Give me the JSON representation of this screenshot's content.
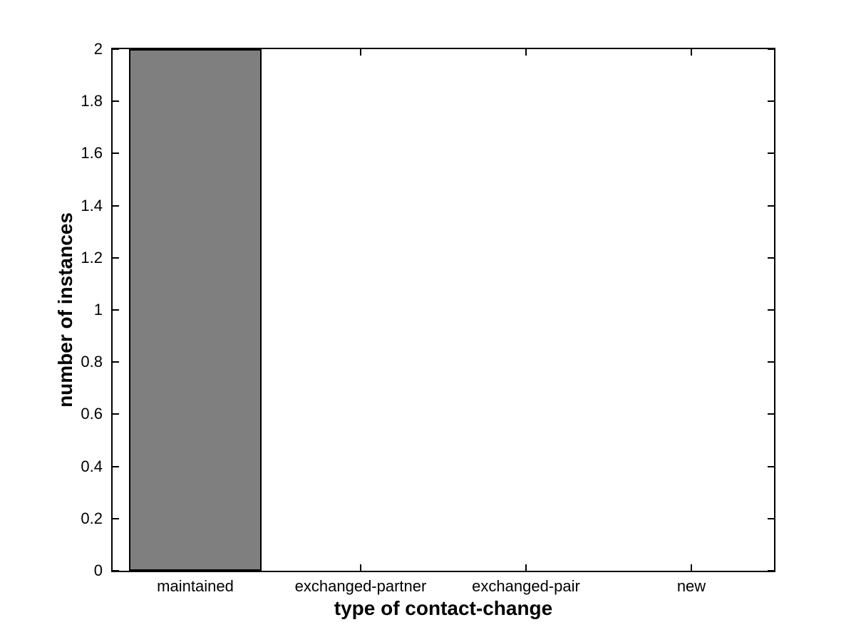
{
  "chart_data": {
    "type": "bar",
    "title": "",
    "xlabel": "type of contact-change",
    "ylabel": "number of instances",
    "categories": [
      "maintained",
      "exchanged-partner",
      "exchanged-pair",
      "new"
    ],
    "values": [
      2,
      0,
      0,
      0
    ],
    "ylim": [
      0,
      2
    ],
    "ytick_values": [
      0,
      0.2,
      0.4,
      0.6,
      0.8,
      1,
      1.2,
      1.4,
      1.6,
      1.8,
      2
    ],
    "ytick_labels": [
      "0",
      "0.2",
      "0.4",
      "0.6",
      "0.8",
      "1",
      "1.2",
      "1.4",
      "1.6",
      "1.8",
      "2"
    ],
    "bar_width_fraction": 0.8,
    "grid": false,
    "legend": null,
    "colors": {
      "bar_fill": "#7f7f7f",
      "bar_edge": "#000000",
      "axis": "#000000",
      "text": "#000000",
      "background": "#ffffff"
    }
  }
}
